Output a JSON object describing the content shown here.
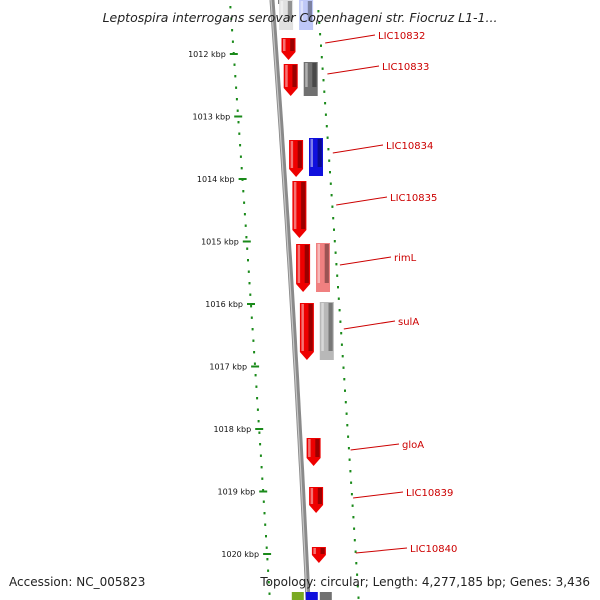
{
  "title": "Leptospira interrogans serovar Copenhageni str. Fiocruz L1-1...",
  "accession_text": "Accession: NC_005823",
  "topology_text": "Topology: circular; Length: 4,277,185 bp; Genes: 3,436",
  "colors": {
    "tick": "#1a8a1a",
    "backbone": "#888888",
    "gene_red": "#ee0000",
    "gene_blue": "#1010dd",
    "gene_gray": "#707070",
    "gene_pink": "#f08080",
    "gene_lightgray": "#b8b8b8",
    "label": "#cc0000"
  },
  "ticks": [
    {
      "label": "1012 kbp"
    },
    {
      "label": "1013 kbp"
    },
    {
      "label": "1014 kbp"
    },
    {
      "label": "1015 kbp"
    },
    {
      "label": "1016 kbp"
    },
    {
      "label": "1017 kbp"
    },
    {
      "label": "1018 kbp"
    },
    {
      "label": "1019 kbp"
    },
    {
      "label": "1020 kbp"
    }
  ],
  "gene_labels": [
    {
      "text": "LIC10832"
    },
    {
      "text": "LIC10833"
    },
    {
      "text": "LIC10834"
    },
    {
      "text": "LIC10835"
    },
    {
      "text": "rimL"
    },
    {
      "text": "sulA"
    },
    {
      "text": "gloA"
    },
    {
      "text": "LIC10839"
    },
    {
      "text": "LIC10840"
    }
  ]
}
